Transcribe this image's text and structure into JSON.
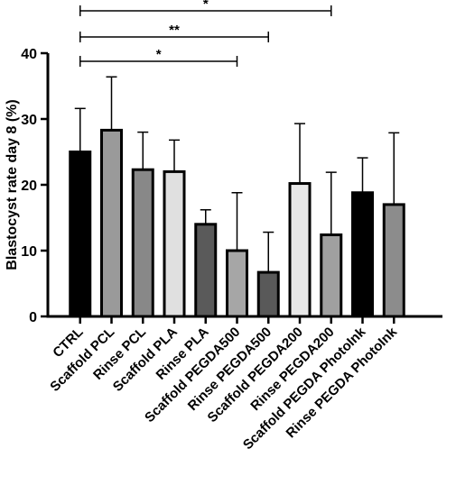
{
  "chart_data": {
    "type": "bar",
    "ylabel": "Blastocyst rate day 8 (%)",
    "ylim": [
      0,
      40
    ],
    "yticks": [
      0,
      10,
      20,
      30,
      40
    ],
    "grid": false,
    "categories": [
      "CTRL",
      "Scaffold PCL",
      "Rinse PCL",
      "Scaffold PLA",
      "Rinse PLA",
      "Scaffold PEGDA500",
      "Rinse PEGDA500",
      "Scaffold PEGDA200",
      "Rinse PEGDA200",
      "Scaffold PEGDA PhotoInk",
      "Rinse PEGDA PhotoInk"
    ],
    "values": [
      25,
      28.3,
      22.3,
      22,
      14,
      10,
      6.7,
      20.2,
      12.4,
      18.8,
      17
    ],
    "error_upper": [
      31.6,
      36.4,
      28,
      26.8,
      16.2,
      18.8,
      12.8,
      29.3,
      21.9,
      24.1,
      27.9
    ],
    "bar_colors": [
      "#000000",
      "#9a9a9a",
      "#888888",
      "#e0e0e0",
      "#5a5a5a",
      "#a6a6a6",
      "#595959",
      "#e8e8e8",
      "#a0a0a0",
      "#000000",
      "#8c8c8c"
    ],
    "significance": [
      {
        "from": "CTRL",
        "to": "Rinse PEGDA200",
        "label": "*"
      },
      {
        "from": "CTRL",
        "to": "Rinse PEGDA500",
        "label": "**"
      },
      {
        "from": "CTRL",
        "to": "Scaffold PEGDA500",
        "label": "*"
      }
    ]
  }
}
